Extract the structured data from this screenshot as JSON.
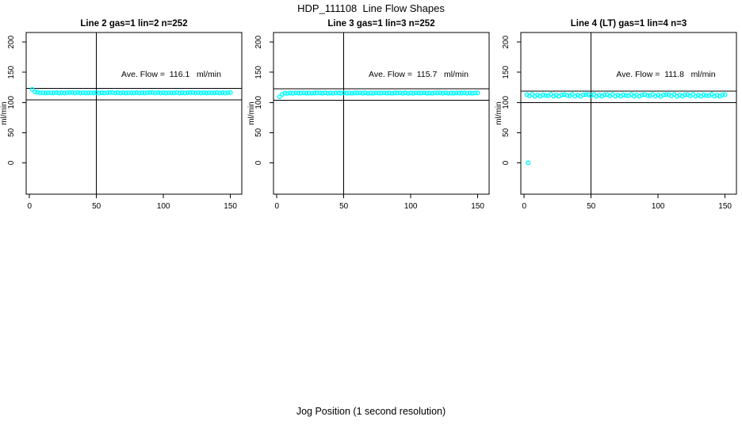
{
  "title": "HDP_111108  Line Flow Shapes",
  "xlabel": "Jog Position (1 second resolution)",
  "colors": {
    "points": "#00FFFF",
    "lines": "#000000",
    "background": "#ffffff"
  },
  "chart_data": [
    {
      "type": "scatter",
      "title": "Line 2 gas=1 lin=2 n=252",
      "ylabel": "ml/min",
      "annotation": "Ave. Flow =  116.1   ml/min",
      "ave_flow": 116.1,
      "n": 252,
      "x_ticks": [
        0,
        50,
        100,
        150
      ],
      "y_ticks": [
        0,
        50,
        100,
        150,
        200
      ],
      "xlim": [
        -2.5,
        158.5
      ],
      "ylim": [
        -52,
        216
      ],
      "vline_x": 50,
      "upper_line": 123.1,
      "lower_line": 104.1,
      "x_start": 2,
      "x_step": 2,
      "y": [
        121.8,
        117.6,
        117.0,
        115.8,
        116.2,
        115.7,
        116.2,
        116.0,
        115.9,
        116.4,
        115.7,
        116.1,
        115.6,
        116.2,
        116.3,
        116.3,
        115.8,
        116.4,
        115.6,
        116.1,
        115.7,
        116.2,
        116.0,
        115.9,
        116.4,
        115.7,
        116.1,
        115.6,
        116.2,
        116.3,
        116.3,
        115.8,
        116.4,
        115.6,
        116.1,
        115.7,
        116.2,
        116.0,
        115.9,
        116.4,
        115.7,
        116.1,
        115.6,
        116.2,
        116.3,
        116.3,
        115.8,
        116.4,
        115.6,
        116.1,
        115.7,
        116.2,
        116.0,
        115.9,
        116.4,
        115.7,
        116.1,
        115.6,
        116.2,
        116.3,
        116.3,
        115.8,
        116.4,
        115.6,
        116.1,
        115.7,
        116.2,
        116.0,
        115.9,
        116.4,
        115.7,
        116.1,
        115.6,
        116.2,
        116.3
      ],
      "outliers": []
    },
    {
      "type": "scatter",
      "title": "Line 3 gas=1 lin=3 n=252",
      "ylabel": "ml/min",
      "annotation": "Ave. Flow =  115.7   ml/min",
      "ave_flow": 115.7,
      "n": 252,
      "x_ticks": [
        0,
        50,
        100,
        150
      ],
      "y_ticks": [
        0,
        50,
        100,
        150,
        200
      ],
      "xlim": [
        -2.5,
        158.5
      ],
      "ylim": [
        -52,
        216
      ],
      "vline_x": 50,
      "upper_line": 122.7,
      "lower_line": 103.7,
      "x_start": 2,
      "x_step": 2,
      "y": [
        109.4,
        113.4,
        115.3,
        115.0,
        115.7,
        115.3,
        115.8,
        115.6,
        115.5,
        116.0,
        115.3,
        115.7,
        115.2,
        115.8,
        115.9,
        115.9,
        115.4,
        116.0,
        115.2,
        115.7,
        115.3,
        115.8,
        115.6,
        115.5,
        116.0,
        115.3,
        115.7,
        115.2,
        115.8,
        115.9,
        115.9,
        115.4,
        116.0,
        115.2,
        115.7,
        115.3,
        115.8,
        115.6,
        115.5,
        116.0,
        115.3,
        115.7,
        115.2,
        115.8,
        115.9,
        115.9,
        115.4,
        116.0,
        115.2,
        115.7,
        115.3,
        115.8,
        115.6,
        115.5,
        116.0,
        115.3,
        115.7,
        115.2,
        115.8,
        115.9,
        115.9,
        115.4,
        116.0,
        115.2,
        115.7,
        115.3,
        115.8,
        115.6,
        115.5,
        116.0,
        115.3,
        115.7,
        115.2,
        115.8,
        115.9
      ],
      "outliers": []
    },
    {
      "type": "scatter",
      "title": "Line 4 (LT) gas=1 lin=4 n=3",
      "ylabel": "ml/min",
      "annotation": "Ave. Flow =  111.8   ml/min",
      "ave_flow": 111.8,
      "n": 3,
      "x_ticks": [
        0,
        50,
        100,
        150
      ],
      "y_ticks": [
        0,
        50,
        100,
        150,
        200
      ],
      "xlim": [
        -2.5,
        158.5
      ],
      "ylim": [
        -52,
        216
      ],
      "vline_x": 50,
      "upper_line": 118.8,
      "lower_line": 99.8,
      "x_start": 2,
      "x_step": 2,
      "y": [
        113.0,
        111.0,
        113.4,
        110.2,
        112.2,
        110.6,
        112.6,
        111.8,
        111.4,
        113.4,
        110.6,
        112.2,
        110.2,
        112.6,
        113.0,
        111.8,
        111.4,
        113.4,
        110.6,
        112.2,
        110.2,
        112.6,
        113.0,
        113.0,
        111.0,
        113.4,
        110.2,
        112.2,
        110.6,
        112.6,
        113.0,
        111.0,
        113.4,
        110.2,
        112.2,
        110.6,
        112.6,
        111.8,
        111.4,
        113.4,
        110.6,
        112.2,
        110.2,
        112.6,
        113.0,
        111.8,
        111.4,
        113.4,
        110.6,
        112.2,
        110.2,
        112.6,
        113.0,
        113.0,
        111.0,
        113.4,
        110.2,
        112.2,
        110.6,
        112.6,
        113.0,
        111.0,
        113.4,
        110.2,
        112.2,
        110.6,
        112.6,
        111.8,
        111.4,
        113.4,
        110.6,
        112.2,
        110.2,
        112.6,
        113.0
      ],
      "outliers": [
        [
          3,
          0
        ]
      ]
    }
  ]
}
